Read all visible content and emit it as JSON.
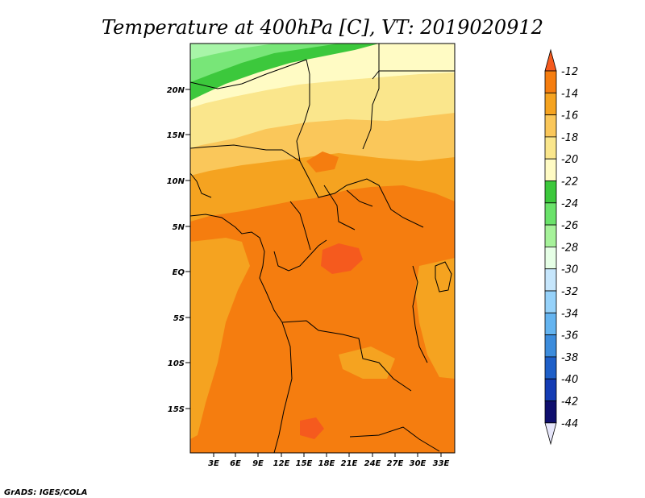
{
  "title": "Temperature at 400hPa [C], VT: 2019020912",
  "credit": "GrADS: IGES/COLA",
  "lat_labels": [
    "20N",
    "15N",
    "10N",
    "5N",
    "EQ",
    "5S",
    "10S",
    "15S"
  ],
  "lon_labels": [
    "3E",
    "6E",
    "9E",
    "12E",
    "15E",
    "18E",
    "21E",
    "24E",
    "27E",
    "30E",
    "33E"
  ],
  "colorbar": {
    "labels": [
      "-12",
      "-14",
      "-16",
      "-18",
      "-20",
      "-22",
      "-24",
      "-26",
      "-28",
      "-30",
      "-32",
      "-34",
      "-36",
      "-38",
      "-40",
      "-42",
      "-44"
    ],
    "colors": [
      "#f55a1e",
      "#f57d0f",
      "#f5a320",
      "#fac75a",
      "#fae68c",
      "#fffbc4",
      "#3cc83c",
      "#6ae26a",
      "#a6f29a",
      "#e6ffe6",
      "#c6e6fc",
      "#96d2fa",
      "#64b4f0",
      "#3c8cdc",
      "#1e5fc8",
      "#143cb4",
      "#0f0f6e",
      "#e6e6fa"
    ]
  },
  "map_fills": {
    "cool_1": "#a8f5a8",
    "cool_2": "#78e678",
    "green": "#3cc83c",
    "pale_yellow": "#fffbc4",
    "yellow": "#fae68c",
    "light_orange": "#fac75a",
    "orange": "#f5a320",
    "dark_orange": "#f57d0f",
    "red_orange": "#f55a1e"
  }
}
